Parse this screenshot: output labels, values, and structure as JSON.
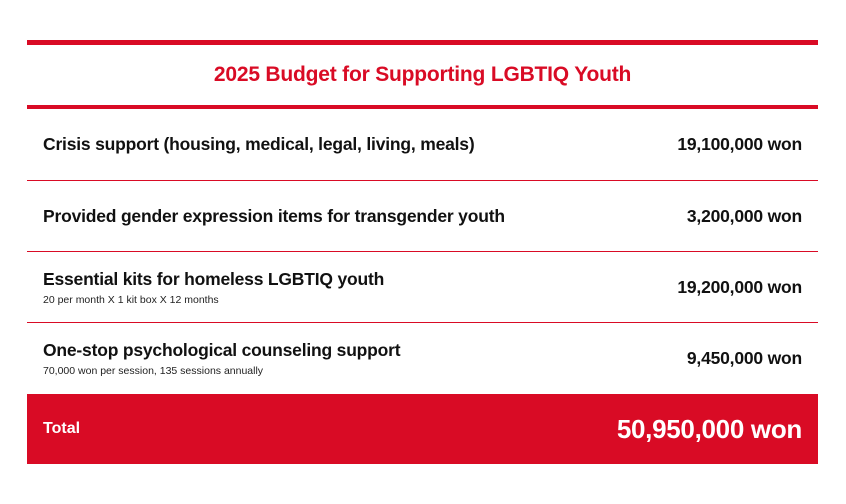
{
  "title": "2025 Budget for Supporting LGBTIQ Youth",
  "items": [
    {
      "label": "Crisis support (housing, medical, legal, living, meals)",
      "note": "",
      "amount": "19,100,000 won"
    },
    {
      "label": "Provided gender expression items for transgender youth",
      "note": "",
      "amount": "3,200,000 won"
    },
    {
      "label": "Essential kits for homeless LGBTIQ youth",
      "note": "20 per month X 1 kit box X 12 months",
      "amount": "19,200,000 won"
    },
    {
      "label": "One-stop psychological counseling support",
      "note": "70,000 won per session, 135 sessions annually",
      "amount": "9,450,000 won"
    }
  ],
  "total": {
    "label": "Total",
    "amount": "50,950,000 won"
  },
  "colors": {
    "accent": "#d90b25",
    "text": "#111111",
    "background": "#ffffff"
  }
}
